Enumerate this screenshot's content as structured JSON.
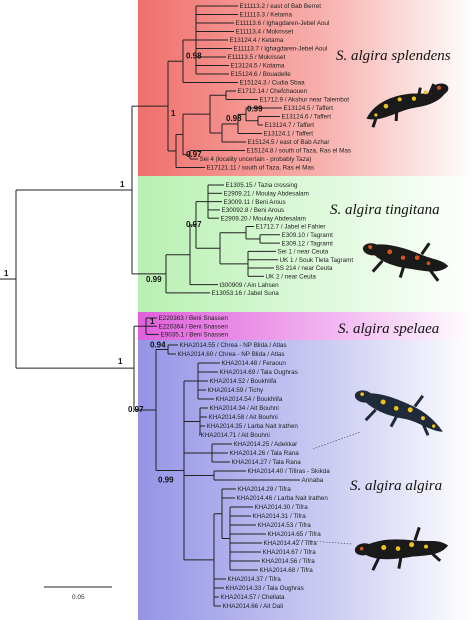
{
  "colors": {
    "splendens_band": "#f28a86",
    "tingitana_band": "#c9f5c4",
    "spelaea_band": "#e77fe3",
    "algira_band": "#a9a8ea",
    "salamander_dark": "#1a1a1a",
    "salamander_yellow": "#f0c21a",
    "salamander_red": "#d8541c"
  },
  "clades": {
    "splendens": "S. algira splendens",
    "tingitana": "S. algira tingitana",
    "spelaea": "S. algira spelaea",
    "algira": "S. algira algira"
  },
  "support": {
    "root": "1",
    "north": "1",
    "splendens_inner": "0.98",
    "splendens_clade": "1",
    "taffert_a": "0.98",
    "taffert_b": "0.99",
    "south": "0.97",
    "tingitana_clade": "0.99",
    "tingitana_inner": "0.97",
    "algerian": "1",
    "spelaea_clade": "1",
    "chrea": "0.94",
    "algira_clade": "0.97",
    "algira_inner": "0.99"
  },
  "scale_bar": "0.05",
  "tips": {
    "splendens": [
      "E11113.2 / east of Bab Berret",
      "E11113.3 / Ketama",
      "E11113.6 / Ighagdaren-Jebel Aoul",
      "E11113.4 / Mokrisset",
      "E13124.4 / Ketama",
      "E11113.7 / Ighagdaren-Jebel Aoul",
      "E11113.5 / Mokrisset",
      "E13124.5 / Kotama",
      "E15124.6 / Bouadelle",
      "E15124.3 / Cudia Sbaa",
      "E1712.14 / Chefchaouen",
      "E1712.9 / Akshur near Talembot",
      "E13124.5 / Taffert",
      "E13124.6 / Taffert",
      "E13124.7 / Taffert",
      "E13124.1 / Taffert",
      "E15124.5 / east of Bab Azhar",
      "E15124.8 / south of Taza, Ras el Mas",
      "Sei 4 (locality uncertain - probably Taza)",
      "E17121.11 / south of Taza, Ras el Mas"
    ],
    "tingitana": [
      "E1305.15 / Tazia crossing",
      "E2909.21 / Moulay Abdesalam",
      "E3009.11 / Beni Arous",
      "E30092.8 / Beni Arous",
      "E2909.20 / Moulay Abdesalam",
      "E1712.7 / Jabel el Fahier",
      "E309.10 / Tagramt",
      "E309.12 / Tagramt",
      "Sei 1 / near Ceuta",
      "UK 1 / Souk Tleta Tagramt",
      "SS 214 / near Ceuta",
      "UK 2 / near Ceuta",
      "t300909 / Ain Lahsen",
      "E13053.16 / Jabel Suna"
    ],
    "spelaea": [
      "E220363 / Beni Snassen",
      "E220364 / Beni Snassen",
      "E9035.1 / Beni Snassen"
    ],
    "algira": [
      "KHA2014.55 / Chrea - NP Blida / Atlas",
      "KHA2014.60 / Chrea - NP Blida / Atlas",
      "KHA2014.48 / Feraoun",
      "KHA2014.69 / Tala Oughras",
      "KHA2014.52 / Boukhlifa",
      "KHA2014.59 / Tichy",
      "KHA2014.54 / Boukhlifa",
      "KHA2014.34 / Ait Bouhni",
      "KHA2014.58 / Ait Bouhni",
      "KHA2014.35 / Larba Nait Irathen",
      "KHA2014.71 / Ait Bouhni",
      "KHA2014.25 / Adekkar",
      "KHA2014.26 / Tala Rana",
      "KHA2014.27 / Tala Rana",
      "KHA2014.40 / Tifiras - Skikda",
      "Annaba",
      "KHA2014.29 / Tifra",
      "KHA2014.46 / Larba Nait Irathen",
      "KHA2014.30 / Tifra",
      "KHA2014.31 / Tifra",
      "KHA2014.53 / Tifra",
      "KHA2014.65 / Tifra",
      "KHA2014.42 / Tifra",
      "KHA2014.67 / Tifra",
      "KHA2014.56 / Tifra",
      "KHA2014.68 / Tifra",
      "KHA2014.37 / Tifra",
      "KHA2014.33 / Tala Oughras",
      "KHA2014.57 / Chellata",
      "KHA2014.66 / Ait Dali"
    ]
  }
}
